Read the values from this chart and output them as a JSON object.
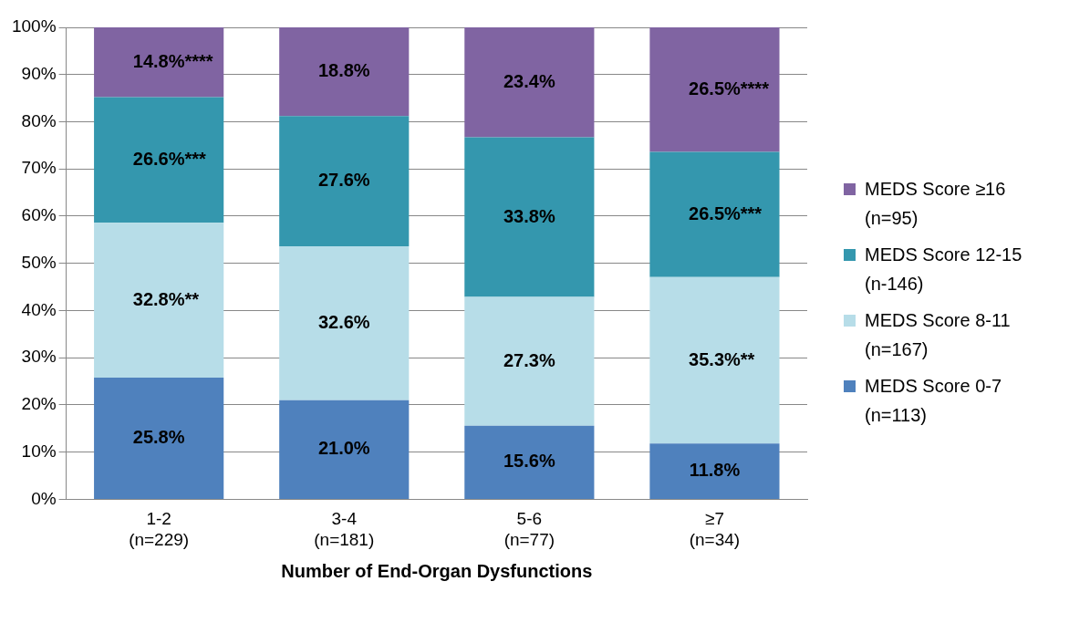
{
  "chart_data": {
    "type": "bar",
    "stacked": true,
    "xlabel": "Number of End-Organ Dysfunctions",
    "categories": [
      "1-2\n(n=229)",
      "3-4\n(n=181)",
      "5-6\n(n=77)",
      "≥7\n(n=34)"
    ],
    "series": [
      {
        "name": "MEDS Score 0-7\n(n=113)",
        "color": "#4f81bd",
        "values": [
          25.8,
          21.0,
          15.6,
          11.8
        ],
        "value_labels": [
          "25.8%",
          "21.0%",
          "15.6%",
          "11.8%"
        ]
      },
      {
        "name": "MEDS Score 8-11\n(n=167)",
        "color": "#b7dde8",
        "values": [
          32.8,
          32.6,
          27.3,
          35.3
        ],
        "value_labels": [
          "32.8%**",
          "32.6%",
          "27.3%",
          "35.3%**"
        ]
      },
      {
        "name": "MEDS Score 12-15\n(n-146)",
        "color": "#3497ae",
        "values": [
          26.6,
          27.6,
          33.8,
          26.5
        ],
        "value_labels": [
          "26.6%***",
          "27.6%",
          "33.8%",
          "26.5%***"
        ]
      },
      {
        "name": "MEDS Score ≥16\n(n=95)",
        "color": "#8064a2",
        "values": [
          14.8,
          18.8,
          23.4,
          26.5
        ],
        "value_labels": [
          "14.8%****",
          "18.8%",
          "23.4%",
          "26.5%****"
        ]
      }
    ],
    "ylim": [
      0,
      100
    ],
    "yticks": [
      {
        "value": 0,
        "label": "0%"
      },
      {
        "value": 10,
        "label": "10%"
      },
      {
        "value": 20,
        "label": "20%"
      },
      {
        "value": 30,
        "label": "30%"
      },
      {
        "value": 40,
        "label": "40%"
      },
      {
        "value": 50,
        "label": "50%"
      },
      {
        "value": 60,
        "label": "60%"
      },
      {
        "value": 70,
        "label": "70%"
      },
      {
        "value": 80,
        "label": "80%"
      },
      {
        "value": 90,
        "label": "90%"
      },
      {
        "value": 100,
        "label": "100%"
      }
    ],
    "grid": "y",
    "legend": "right"
  }
}
